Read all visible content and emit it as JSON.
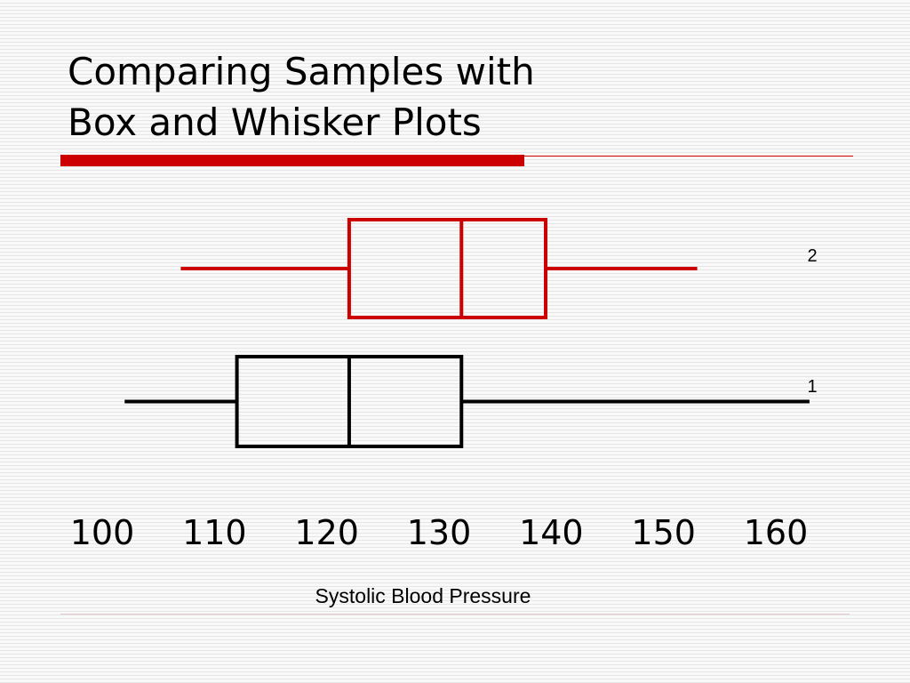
{
  "slide": {
    "title_line1": "Comparing Samples with",
    "title_line2": "Box and Whisker Plots"
  },
  "colors": {
    "accent": "#cc0000",
    "sample_2": "#cc0000",
    "sample_1": "#000000"
  },
  "chart_data": {
    "type": "boxplot",
    "xlabel": "Systolic Blood Pressure",
    "xlim": [
      100,
      160
    ],
    "xticks": [
      "100",
      "110",
      "120",
      "130",
      "140",
      "150",
      "160"
    ],
    "grid": false,
    "series": [
      {
        "label": "2",
        "min": 107,
        "q1": 122,
        "median": 132,
        "q3": 139.5,
        "max": 153,
        "color": "#cc0000"
      },
      {
        "label": "1",
        "min": 102,
        "q1": 112,
        "median": 122,
        "q3": 132,
        "max": 163,
        "color": "#000000"
      }
    ]
  }
}
